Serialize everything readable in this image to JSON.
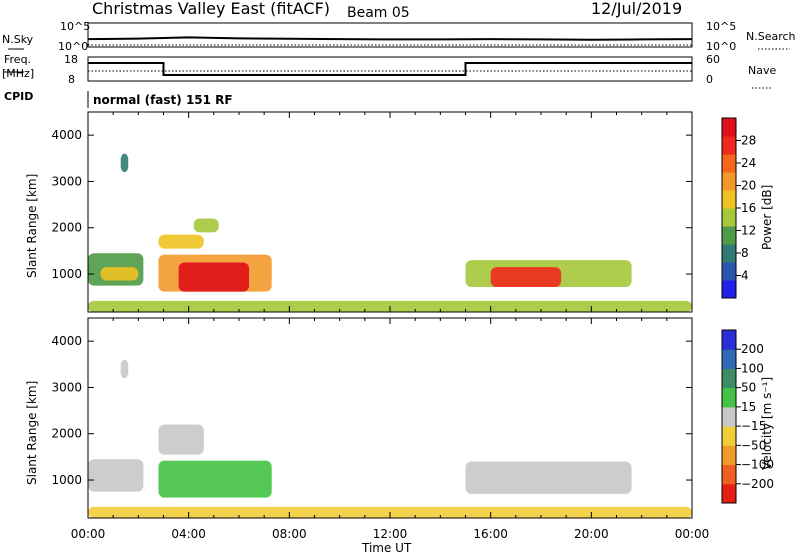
{
  "header": {
    "title": "Christmas Valley East (fitACF)",
    "beam": "Beam 05",
    "date": "12/Jul/2019"
  },
  "summary_panels": {
    "nsky_label": "N.Sky",
    "nsky_ticks": [
      "10^5",
      "10^0"
    ],
    "nsearch_label": "N.Search",
    "nsearch_ticks": [
      "10^5",
      "10^0"
    ],
    "freq_label_line1": "Freq.",
    "freq_label_line2": "[MHz]",
    "freq_ticks": [
      "18",
      "8"
    ],
    "nave_label": "Nave",
    "nave_ticks": [
      "60",
      "0"
    ],
    "cpid_label": "CPID",
    "cpid_value": "normal (fast) 151 RF"
  },
  "axes": {
    "ylabel": "Slant Range [km]",
    "xlabel": "Time UT",
    "x_ticks": [
      "00:00",
      "04:00",
      "08:00",
      "12:00",
      "16:00",
      "20:00",
      "00:00"
    ],
    "y_ticks": [
      "1000",
      "2000",
      "3000",
      "4000"
    ]
  },
  "colorbars": {
    "power": {
      "label": "Power [dB]",
      "ticks": [
        "4",
        "8",
        "12",
        "16",
        "20",
        "24",
        "28"
      ],
      "colors": [
        "#1f22e6",
        "#2a56b0",
        "#2f7a72",
        "#4f9a46",
        "#a6c83a",
        "#f0c322",
        "#f3992c",
        "#f4681e",
        "#ee2a1c",
        "#e0101a"
      ]
    },
    "velocity": {
      "label": "Velocity [m s⁻¹]",
      "ticks": [
        "200",
        "100",
        "50",
        "15",
        "−15",
        "−50",
        "−100",
        "−200"
      ],
      "colors": [
        "#2a2ed8",
        "#2e6ab6",
        "#3c8e62",
        "#44c245",
        "#c8c8c8",
        "#f2cd3a",
        "#f39a2c",
        "#f15f20",
        "#e42014"
      ]
    }
  },
  "chart_data": [
    {
      "type": "line",
      "title": "N.Sky / N.Search",
      "x_range": [
        "00:00",
        "24:00"
      ],
      "yscale": "log",
      "ylim": [
        1,
        100000
      ],
      "series": [
        {
          "name": "N.Sky",
          "x": [
            0,
            2,
            4,
            6,
            8,
            10,
            12,
            14,
            16,
            18,
            20,
            22,
            24
          ],
          "values": [
            30,
            40,
            80,
            45,
            35,
            30,
            25,
            25,
            30,
            25,
            20,
            25,
            30
          ]
        },
        {
          "name": "N.Search",
          "x": [
            0,
            24
          ],
          "values": [
            1,
            1
          ]
        }
      ]
    },
    {
      "type": "line",
      "title": "Freq. / Nave",
      "x_range": [
        "00:00",
        "24:00"
      ],
      "series": [
        {
          "name": "Freq. [MHz]",
          "x": [
            0,
            3,
            3,
            15,
            15,
            24
          ],
          "values": [
            16,
            16,
            10,
            10,
            16,
            16
          ]
        },
        {
          "name": "Nave",
          "x": [
            0,
            24
          ],
          "values": [
            24,
            24
          ]
        }
      ]
    },
    {
      "type": "heatmap",
      "quantity": "Power [dB]",
      "x_range_hours": [
        0,
        24
      ],
      "ylim_km": [
        180,
        4500
      ],
      "clim": [
        0,
        30
      ],
      "regions": [
        {
          "t0": 0.0,
          "t1": 2.2,
          "r0": 750,
          "r1": 1450,
          "value": 10
        },
        {
          "t0": 0.5,
          "t1": 2.0,
          "r0": 860,
          "r1": 1150,
          "value": 16
        },
        {
          "t0": 2.8,
          "t1": 7.3,
          "r0": 620,
          "r1": 1420,
          "value": 18
        },
        {
          "t0": 3.6,
          "t1": 6.4,
          "r0": 620,
          "r1": 1250,
          "value": 28
        },
        {
          "t0": 2.8,
          "t1": 4.6,
          "r0": 1550,
          "r1": 1850,
          "value": 15
        },
        {
          "t0": 4.2,
          "t1": 5.2,
          "r0": 1900,
          "r1": 2200,
          "value": 12
        },
        {
          "t0": 15.0,
          "t1": 21.6,
          "r0": 720,
          "r1": 1300,
          "value": 14
        },
        {
          "t0": 16.0,
          "t1": 18.8,
          "r0": 720,
          "r1": 1150,
          "value": 25
        },
        {
          "t0": 1.3,
          "t1": 1.6,
          "r0": 3200,
          "r1": 3600,
          "value": 8
        },
        {
          "t0": 0.0,
          "t1": 24.0,
          "r0": 180,
          "r1": 420,
          "value": 12
        }
      ]
    },
    {
      "type": "heatmap",
      "quantity": "Velocity [m s⁻¹]",
      "x_range_hours": [
        0,
        24
      ],
      "ylim_km": [
        180,
        4500
      ],
      "clim": [
        -200,
        200
      ],
      "regions": [
        {
          "t0": 0.0,
          "t1": 2.2,
          "r0": 750,
          "r1": 1450,
          "value": 0
        },
        {
          "t0": 2.8,
          "t1": 4.6,
          "r0": 1550,
          "r1": 2200,
          "value": 0
        },
        {
          "t0": 2.8,
          "t1": 7.3,
          "r0": 620,
          "r1": 1420,
          "value": 30
        },
        {
          "t0": 15.0,
          "t1": 21.6,
          "r0": 700,
          "r1": 1400,
          "value": 0
        },
        {
          "t0": 0.0,
          "t1": 24.0,
          "r0": 180,
          "r1": 420,
          "value": -30
        },
        {
          "t0": 1.3,
          "t1": 1.6,
          "r0": 3200,
          "r1": 3600,
          "value": 0
        }
      ]
    }
  ]
}
